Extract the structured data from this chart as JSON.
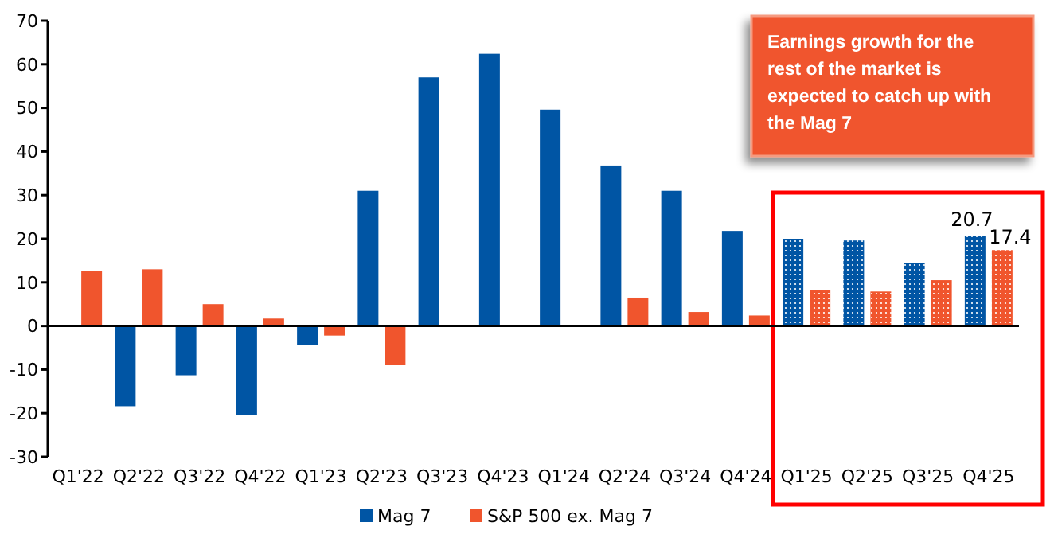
{
  "chart_data": {
    "type": "bar",
    "categories": [
      "Q1'22",
      "Q2'22",
      "Q3'22",
      "Q4'22",
      "Q1'23",
      "Q2'23",
      "Q3'23",
      "Q4'23",
      "Q1'24",
      "Q2'24",
      "Q3'24",
      "Q4'24",
      "Q1'25",
      "Q2'25",
      "Q3'25",
      "Q4'25"
    ],
    "series": [
      {
        "name": "Mag 7",
        "color": "#0055a4",
        "values": [
          null,
          -18.4,
          -11.3,
          -20.5,
          -4.4,
          31.0,
          57.0,
          62.4,
          49.6,
          36.8,
          31.0,
          21.8,
          20.0,
          19.6,
          14.5,
          20.7
        ],
        "value_labels": [
          null,
          null,
          null,
          null,
          null,
          null,
          null,
          null,
          null,
          null,
          null,
          null,
          null,
          null,
          null,
          "20.7"
        ]
      },
      {
        "name": "S&P 500 ex. Mag 7",
        "color": "#f0552d",
        "values": [
          12.7,
          13.0,
          5.0,
          1.7,
          -2.2,
          -8.9,
          null,
          null,
          null,
          6.5,
          3.2,
          2.4,
          8.3,
          7.9,
          10.5,
          17.4
        ],
        "value_labels": [
          null,
          null,
          null,
          null,
          null,
          null,
          null,
          null,
          null,
          null,
          null,
          null,
          null,
          null,
          null,
          "17.4"
        ]
      }
    ],
    "ylim": [
      -30,
      70
    ],
    "yticks": [
      -30,
      -20,
      -10,
      0,
      10,
      20,
      30,
      40,
      50,
      60,
      70
    ],
    "legend": "bottom",
    "annotations": [
      "Earnings growth for the rest of the market is expected to catch up with the Mag 7"
    ]
  }
}
